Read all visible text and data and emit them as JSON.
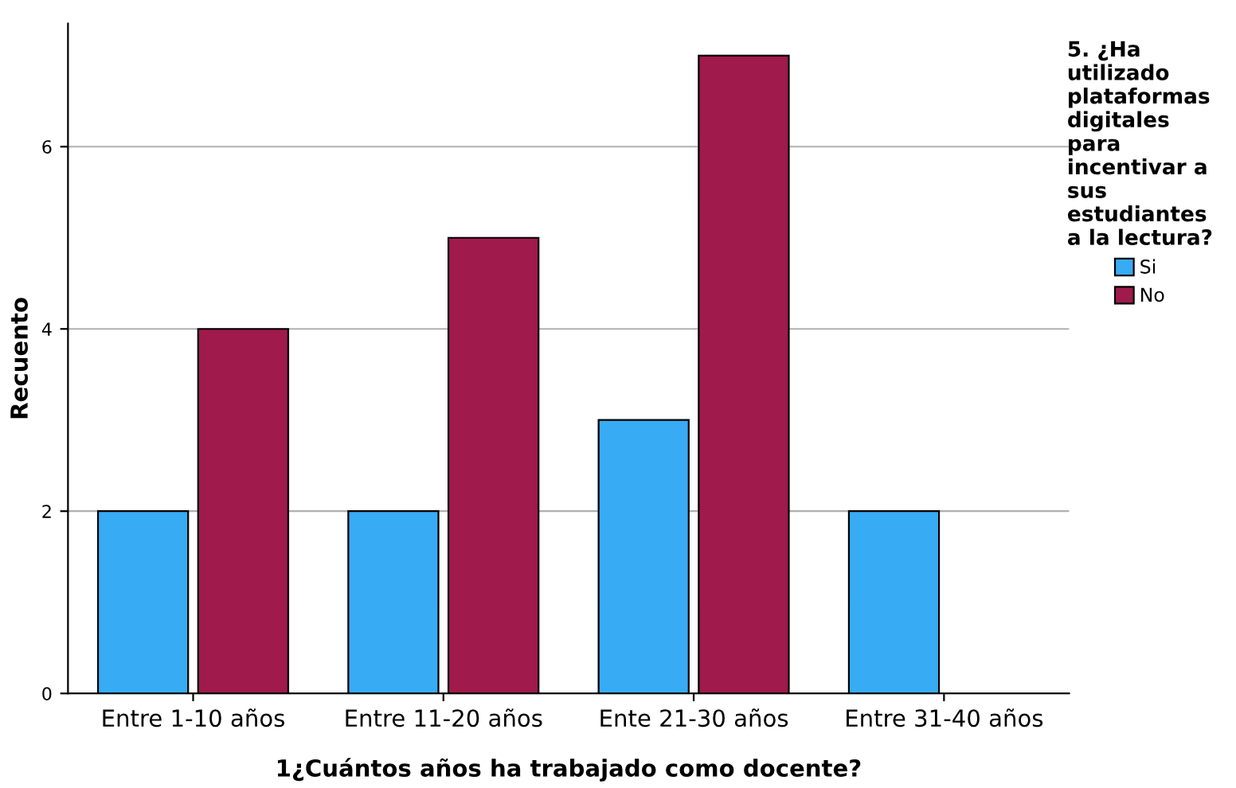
{
  "chart_data": {
    "type": "bar",
    "xlabel": "1¿Cuántos años ha trabajado como docente?",
    "ylabel": "Recuento",
    "legend_title": "5. ¿Ha\nutilizado\nplataformas\ndigitales\npara\nincentivar a\nsus\nestudiantes\na la lectura?",
    "categories": [
      "Entre 1-10 años",
      "Entre 11-20 años",
      "Ente 21-30 años",
      "Entre 31-40 años"
    ],
    "series": [
      {
        "name": "Si",
        "color": "#38abf5",
        "values": [
          2,
          2,
          3,
          2
        ]
      },
      {
        "name": "No",
        "color": "#a01a4c",
        "values": [
          4,
          5,
          7,
          null
        ]
      }
    ],
    "ylim": [
      0,
      7.35
    ],
    "yticks": [
      0,
      2,
      4,
      6
    ],
    "grid": "y",
    "legend": "top right"
  }
}
